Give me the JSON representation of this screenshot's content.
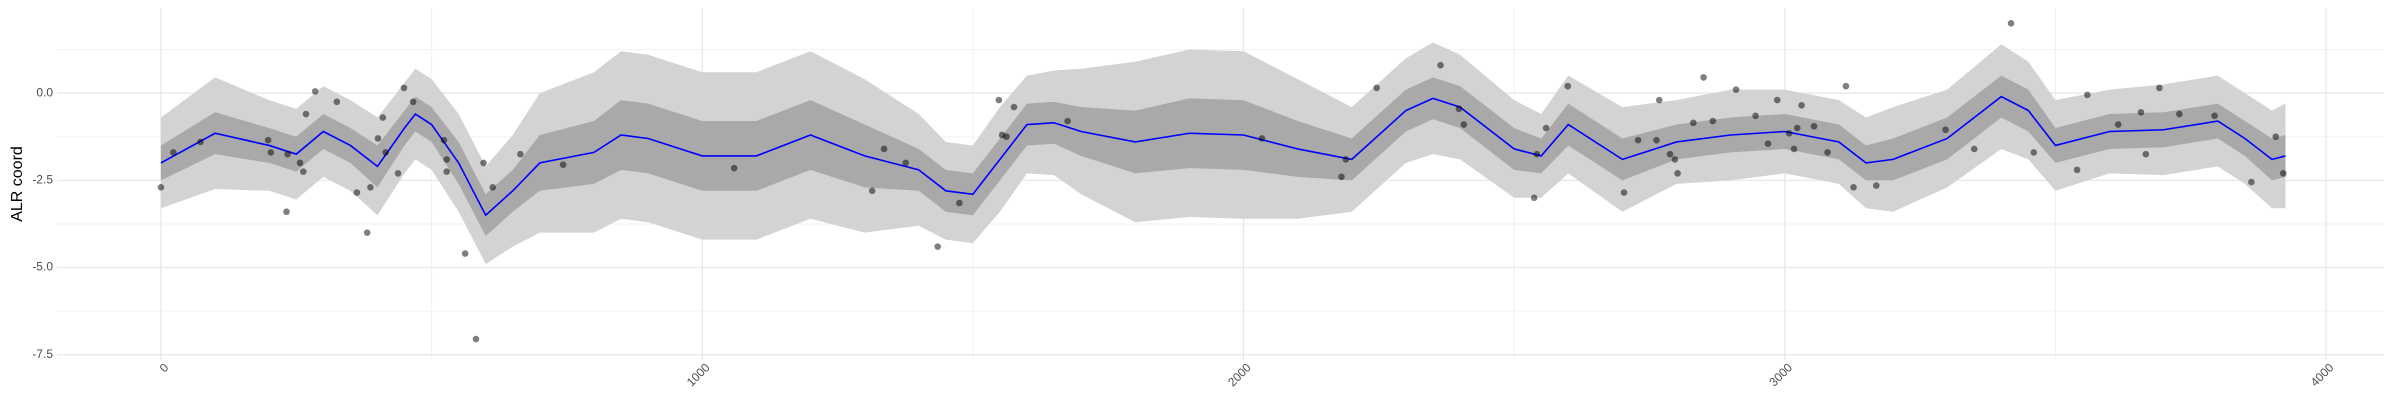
{
  "chart_data": {
    "type": "line",
    "y_label": "ALR coord",
    "xlim": [
      -192,
      4107
    ],
    "ylim": [
      -7.65,
      2.44
    ],
    "xticks": [
      0,
      1000,
      2000,
      3000,
      4000
    ],
    "yticks": [
      {
        "value": 0,
        "label": "0.0"
      },
      -2.5,
      {
        "value": -5,
        "label": "-5.0"
      },
      -7.5
    ],
    "x_minor_ticks": [
      500,
      1500,
      2500,
      3500
    ],
    "y_minor_ticks": [
      1.25,
      -1.25,
      -3.75,
      -6.25
    ],
    "grid": true,
    "x": [
      0,
      100,
      200,
      250,
      300,
      350,
      400,
      450,
      470,
      500,
      550,
      600,
      650,
      700,
      800,
      850,
      900,
      1000,
      1100,
      1200,
      1300,
      1400,
      1450,
      1500,
      1550,
      1600,
      1650,
      1700,
      1800,
      1900,
      2000,
      2100,
      2200,
      2300,
      2350,
      2400,
      2500,
      2550,
      2600,
      2700,
      2800,
      2900,
      3000,
      3100,
      3150,
      3200,
      3300,
      3400,
      3450,
      3500,
      3600,
      3700,
      3800,
      3850,
      3900,
      3925
    ],
    "band_outer": {
      "color": "#d3d3d3",
      "lower": [
        -3.3,
        -2.75,
        -2.8,
        -3.05,
        -2.4,
        -2.8,
        -3.5,
        -2.3,
        -1.9,
        -2.2,
        -3.4,
        -4.9,
        -4.4,
        -4.0,
        -4.0,
        -3.6,
        -3.7,
        -4.2,
        -4.2,
        -3.6,
        -4.0,
        -3.8,
        -4.2,
        -4.3,
        -3.4,
        -2.3,
        -2.35,
        -2.9,
        -3.7,
        -3.55,
        -3.6,
        -3.6,
        -3.4,
        -2.0,
        -1.75,
        -1.9,
        -3.0,
        -3.0,
        -2.3,
        -3.4,
        -2.6,
        -2.5,
        -2.3,
        -2.6,
        -3.3,
        -3.4,
        -2.7,
        -1.6,
        -1.9,
        -2.8,
        -2.3,
        -2.35,
        -2.1,
        -2.6,
        -3.3,
        -3.3
      ],
      "upper": [
        -0.7,
        0.45,
        -0.2,
        -0.45,
        0.2,
        -0.2,
        -0.7,
        0.3,
        0.7,
        0.4,
        -0.6,
        -2.1,
        -1.2,
        0.0,
        0.6,
        1.2,
        1.1,
        0.6,
        0.6,
        1.2,
        0.4,
        -0.6,
        -1.4,
        -1.5,
        -0.4,
        0.5,
        0.65,
        0.7,
        0.9,
        1.25,
        1.2,
        0.4,
        -0.4,
        1.0,
        1.45,
        1.1,
        -0.2,
        -0.6,
        0.5,
        -0.4,
        -0.2,
        0.1,
        0.1,
        -0.2,
        -0.7,
        -0.4,
        0.1,
        1.4,
        0.9,
        -0.2,
        0.1,
        0.25,
        0.5,
        0.0,
        -0.5,
        -0.3
      ]
    },
    "band_inner": {
      "color": "#a9a9a9",
      "lower": [
        -2.5,
        -1.75,
        -2.0,
        -2.25,
        -1.6,
        -2.0,
        -2.7,
        -1.5,
        -1.1,
        -1.4,
        -2.6,
        -4.1,
        -3.4,
        -2.8,
        -2.6,
        -2.2,
        -2.3,
        -2.8,
        -2.8,
        -2.2,
        -2.7,
        -2.8,
        -3.4,
        -3.5,
        -2.5,
        -1.5,
        -1.45,
        -1.8,
        -2.3,
        -2.15,
        -2.2,
        -2.4,
        -2.5,
        -1.1,
        -0.75,
        -1.0,
        -2.2,
        -2.3,
        -1.5,
        -2.5,
        -1.9,
        -1.7,
        -1.6,
        -1.9,
        -2.5,
        -2.5,
        -1.9,
        -0.7,
        -1.1,
        -2.0,
        -1.6,
        -1.55,
        -1.3,
        -1.8,
        -2.5,
        -2.4
      ],
      "upper": [
        -1.5,
        -0.55,
        -1.0,
        -1.25,
        -0.6,
        -1.0,
        -1.5,
        -0.5,
        -0.1,
        -0.4,
        -1.4,
        -2.9,
        -2.2,
        -1.2,
        -0.8,
        -0.2,
        -0.3,
        -0.8,
        -0.8,
        -0.2,
        -0.9,
        -1.6,
        -2.2,
        -2.3,
        -1.3,
        -0.3,
        -0.25,
        -0.4,
        -0.5,
        -0.15,
        -0.2,
        -0.8,
        -1.3,
        0.1,
        0.45,
        0.2,
        -1.0,
        -1.3,
        -0.3,
        -1.3,
        -0.9,
        -0.7,
        -0.6,
        -0.9,
        -1.5,
        -1.3,
        -0.7,
        0.5,
        0.1,
        -1.0,
        -0.6,
        -0.55,
        -0.3,
        -0.8,
        -1.3,
        -1.2
      ]
    },
    "line": {
      "color": "#0000ff",
      "values": [
        -2.0,
        -1.15,
        -1.5,
        -1.75,
        -1.1,
        -1.5,
        -2.1,
        -1.0,
        -0.6,
        -0.9,
        -2.0,
        -3.5,
        -2.8,
        -2.0,
        -1.7,
        -1.2,
        -1.3,
        -1.8,
        -1.8,
        -1.2,
        -1.8,
        -2.2,
        -2.8,
        -2.9,
        -1.9,
        -0.9,
        -0.85,
        -1.1,
        -1.4,
        -1.15,
        -1.2,
        -1.6,
        -1.9,
        -0.5,
        -0.15,
        -0.4,
        -1.6,
        -1.8,
        -0.9,
        -1.9,
        -1.4,
        -1.2,
        -1.1,
        -1.4,
        -2.0,
        -1.9,
        -1.3,
        -0.1,
        -0.5,
        -1.5,
        -1.1,
        -1.05,
        -0.8,
        -1.3,
        -1.9,
        -1.8
      ]
    },
    "points": {
      "color": "#000000",
      "x": [
        0,
        23,
        73,
        198,
        203,
        232,
        234,
        257,
        263,
        268,
        285,
        325,
        362,
        381,
        387,
        401,
        410,
        415,
        438,
        449,
        466,
        523,
        528,
        528,
        562,
        582,
        596,
        613,
        664,
        743,
        1059,
        1314,
        1336,
        1376,
        1435,
        1475,
        1548,
        1554,
        1562,
        1576,
        1675,
        2034,
        2181,
        2189,
        2246,
        2364,
        2398,
        2407,
        2537,
        2542,
        2559,
        2599,
        2703,
        2729,
        2763,
        2768,
        2788,
        2797,
        2802,
        2831,
        2850,
        2867,
        2910,
        2946,
        2969,
        2986,
        3008,
        3017,
        3023,
        3031,
        3054,
        3079,
        3113,
        3127,
        3169,
        3297,
        3350,
        3418,
        3460,
        3540,
        3559,
        3616,
        3658,
        3667,
        3692,
        3729,
        3794,
        3862,
        3907,
        3921
      ],
      "y": [
        -2.7,
        -1.7,
        -1.4,
        -1.35,
        -1.7,
        -3.4,
        -1.75,
        -2.0,
        -2.25,
        -0.6,
        0.05,
        -0.25,
        -2.85,
        -4.0,
        -2.7,
        -1.3,
        -0.7,
        -1.7,
        -2.3,
        0.15,
        -0.25,
        -1.35,
        -1.9,
        -2.25,
        -4.6,
        -7.05,
        -2.0,
        -2.7,
        -1.75,
        -2.05,
        -2.15,
        -2.8,
        -1.6,
        -2.0,
        -4.4,
        -3.15,
        -0.2,
        -1.2,
        -1.25,
        -0.4,
        -0.8,
        -1.3,
        -2.4,
        -1.9,
        0.15,
        0.8,
        -0.45,
        -0.9,
        -3.0,
        -1.75,
        -1.0,
        0.2,
        -2.85,
        -1.35,
        -1.35,
        -0.2,
        -1.75,
        -1.9,
        -2.3,
        -0.85,
        0.45,
        -0.8,
        0.1,
        -0.65,
        -1.45,
        -0.2,
        -1.15,
        -1.6,
        -1.0,
        -0.35,
        -0.95,
        -1.7,
        0.2,
        -2.7,
        -2.65,
        -1.05,
        -1.6,
        2.0,
        -1.7,
        -2.2,
        -0.05,
        -0.9,
        -0.55,
        -1.75,
        0.15,
        -0.6,
        -0.65,
        -2.55,
        -1.25,
        -2.3
      ]
    }
  }
}
